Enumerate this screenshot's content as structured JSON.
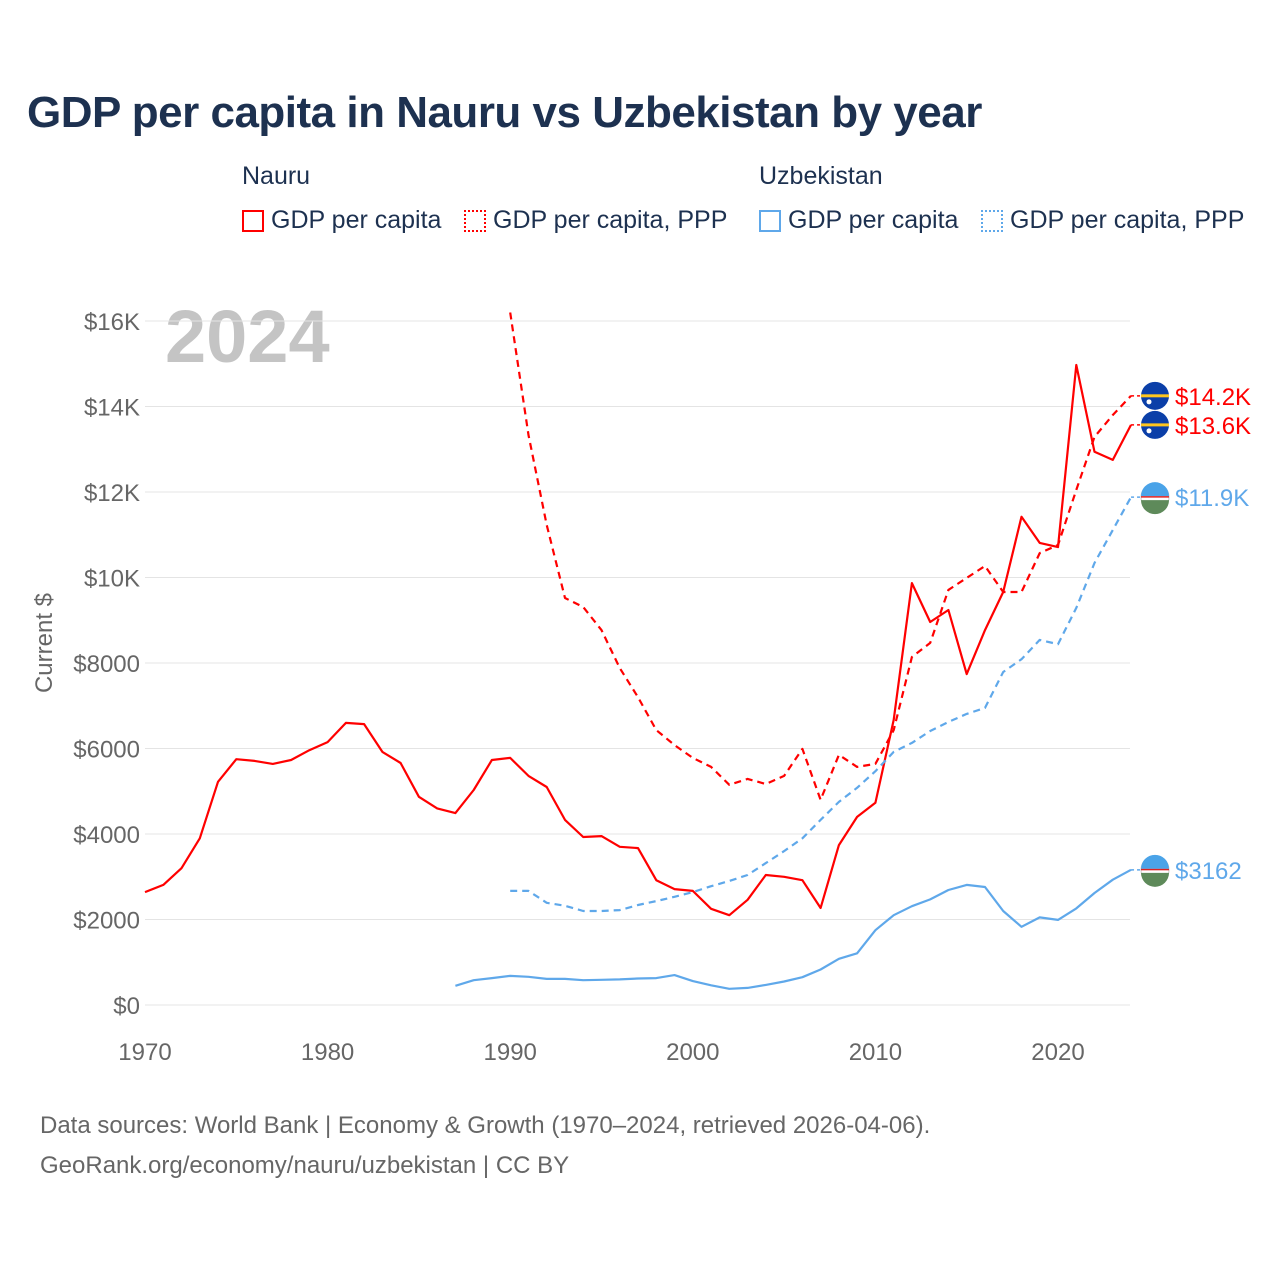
{
  "chart_data": {
    "type": "line",
    "title": "GDP per capita in Nauru vs Uzbekistan by year",
    "year_watermark": "2024",
    "ylabel": "Current $",
    "xlabel": "",
    "xlim": [
      1970,
      2024
    ],
    "ylim": [
      0,
      16000
    ],
    "x_ticks": [
      1970,
      1980,
      1990,
      2000,
      2010,
      2020
    ],
    "x_tick_labels": [
      "1970",
      "1980",
      "1990",
      "2000",
      "2010",
      "2020"
    ],
    "y_ticks": [
      0,
      2000,
      4000,
      6000,
      8000,
      10000,
      12000,
      14000,
      16000
    ],
    "y_tick_labels": [
      "$0",
      "$2000",
      "$4000",
      "$6000",
      "$8000",
      "$10K",
      "$12K",
      "$14K",
      "$16K"
    ],
    "grid": true,
    "legend": {
      "placement": "top",
      "groups": [
        {
          "name": "Nauru",
          "items": [
            "GDP per capita",
            "GDP per capita, PPP"
          ]
        },
        {
          "name": "Uzbekistan",
          "items": [
            "GDP per capita",
            "GDP per capita, PPP"
          ]
        }
      ]
    },
    "colors": {
      "nauru": "#ff0000",
      "uzbekistan": "#5fa8ea"
    },
    "series": [
      {
        "name": "Nauru GDP per capita",
        "country": "nauru",
        "dashed": false,
        "end_label": "$13.6K",
        "start_year": 1970,
        "values": [
          2640,
          2810,
          3200,
          3900,
          5220,
          5750,
          5710,
          5640,
          5730,
          5960,
          6150,
          6600,
          6570,
          5920,
          5660,
          4870,
          4600,
          4490,
          5030,
          5730,
          5780,
          5360,
          5100,
          4330,
          3930,
          3950,
          3700,
          3670,
          2920,
          2710,
          2670,
          2250,
          2100,
          2460,
          3040,
          3000,
          2920,
          2270,
          3740,
          4400,
          4730,
          6670,
          9870,
          8960,
          9240,
          7740,
          8770,
          9660,
          11420,
          10810,
          10710,
          14970,
          12940,
          12750,
          13570
        ]
      },
      {
        "name": "Nauru GDP per capita, PPP",
        "country": "nauru",
        "dashed": true,
        "end_label": "$14.2K",
        "start_year": 1990,
        "values": [
          16200,
          13330,
          11230,
          9520,
          9310,
          8770,
          7880,
          7200,
          6430,
          6080,
          5780,
          5570,
          5150,
          5290,
          5170,
          5360,
          5990,
          4800,
          5850,
          5570,
          5640,
          6430,
          8140,
          8470,
          9710,
          9990,
          10270,
          9660,
          9660,
          10570,
          10760,
          12050,
          13290,
          13800,
          14250
        ]
      },
      {
        "name": "Uzbekistan GDP per capita",
        "country": "uzbekistan",
        "dashed": false,
        "end_label": "$3162",
        "start_year": 1987,
        "values": [
          450,
          580,
          630,
          680,
          660,
          610,
          610,
          580,
          590,
          600,
          620,
          630,
          700,
          560,
          460,
          380,
          400,
          470,
          550,
          650,
          830,
          1080,
          1210,
          1750,
          2100,
          2310,
          2470,
          2690,
          2810,
          2760,
          2200,
          1830,
          2050,
          1990,
          2260,
          2620,
          2930,
          3162
        ]
      },
      {
        "name": "Uzbekistan GDP per capita, PPP",
        "country": "uzbekistan",
        "dashed": true,
        "end_label": "$11.9K",
        "start_year": 1990,
        "values": [
          2670,
          2670,
          2390,
          2320,
          2200,
          2200,
          2220,
          2340,
          2430,
          2530,
          2640,
          2780,
          2900,
          3040,
          3320,
          3600,
          3900,
          4330,
          4750,
          5080,
          5470,
          5920,
          6130,
          6410,
          6620,
          6810,
          6950,
          7790,
          8090,
          8540,
          8440,
          9290,
          10340,
          11110,
          11880
        ]
      }
    ]
  },
  "footer": {
    "line1": "Data sources: World Bank | Economy & Growth (1970–2024, retrieved 2026-04-06).",
    "line2": "GeoRank.org/economy/nauru/uzbekistan | CC BY"
  }
}
